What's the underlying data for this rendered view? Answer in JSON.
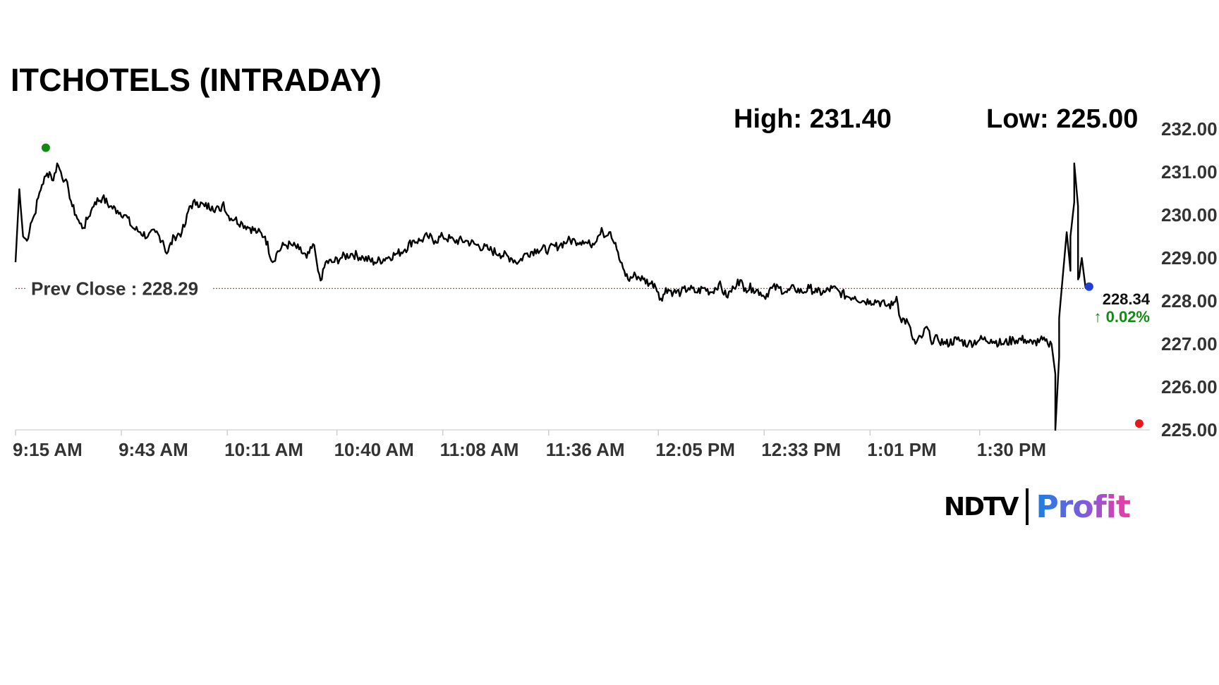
{
  "title": "ITCHOTELS (INTRADAY)",
  "stats": {
    "high_label": "High: 231.40",
    "low_label": "Low: 225.00"
  },
  "logo": {
    "brand": "NDTV",
    "product": "Profit"
  },
  "colors": {
    "line": "#000000",
    "prev_close_line": "#c0392b",
    "high_marker": "#138a13",
    "low_marker": "#e8171b",
    "last_marker": "#1f3fd6",
    "change_positive": "#138a13",
    "axis_text": "#333333"
  },
  "chart_data": {
    "type": "line",
    "title": "ITCHOTELS (INTRADAY)",
    "xlabel": "",
    "ylabel": "",
    "x_tick_labels": [
      "9:15 AM",
      "9:43 AM",
      "10:11 AM",
      "10:40 AM",
      "11:08 AM",
      "11:36 AM",
      "12:05 PM",
      "12:33 PM",
      "1:01 PM",
      "1:30 PM"
    ],
    "y_tick_labels": [
      "232.00",
      "231.00",
      "230.00",
      "229.00",
      "228.00",
      "227.00",
      "226.00",
      "225.00"
    ],
    "ylim": [
      225,
      232
    ],
    "x_range_minutes_from_915": [
      0,
      300
    ],
    "grid": false,
    "y_axis_position": "right",
    "prev_close": {
      "label": "Prev Close : 228.29",
      "value": 228.29
    },
    "high": {
      "value": 231.4,
      "time": "9:23 AM"
    },
    "low": {
      "value": 225.0,
      "time": "2:12 PM"
    },
    "last": {
      "value": 228.34,
      "label": "228.34",
      "change_label": "↑ 0.02%"
    },
    "series": [
      {
        "values": [
          [
            "9:15 AM",
            228.9
          ],
          [
            "9:16 AM",
            230.6
          ],
          [
            "9:17 AM",
            229.5
          ],
          [
            "9:18 AM",
            229.4
          ],
          [
            "9:19 AM",
            229.8
          ],
          [
            "9:20 AM",
            230.0
          ],
          [
            "9:21 AM",
            230.4
          ],
          [
            "9:22 AM",
            230.7
          ],
          [
            "9:23 AM",
            230.9
          ],
          [
            "9:24 AM",
            231.0
          ],
          [
            "9:25 AM",
            230.8
          ],
          [
            "9:26 AM",
            231.2
          ],
          [
            "9:27 AM",
            231.0
          ],
          [
            "9:28 AM",
            230.8
          ],
          [
            "9:29 AM",
            230.6
          ],
          [
            "9:30 AM",
            230.2
          ],
          [
            "9:31 AM",
            230.0
          ],
          [
            "9:32 AM",
            229.8
          ],
          [
            "9:33 AM",
            229.7
          ],
          [
            "9:34 AM",
            229.9
          ],
          [
            "9:35 AM",
            230.1
          ],
          [
            "9:36 AM",
            230.3
          ],
          [
            "9:38 AM",
            230.4
          ],
          [
            "9:40 AM",
            230.2
          ],
          [
            "9:42 AM",
            230.1
          ],
          [
            "9:44 AM",
            230.0
          ],
          [
            "9:46 AM",
            229.7
          ],
          [
            "9:48 AM",
            229.6
          ],
          [
            "9:50 AM",
            229.5
          ],
          [
            "9:52 AM",
            229.6
          ],
          [
            "9:54 AM",
            229.4
          ],
          [
            "9:55 AM",
            229.1
          ],
          [
            "9:57 AM",
            229.5
          ],
          [
            "9:59 AM",
            229.6
          ],
          [
            "10:00 AM",
            229.8
          ],
          [
            "10:01 AM",
            230.2
          ],
          [
            "10:03 AM",
            230.3
          ],
          [
            "10:05 AM",
            230.2
          ],
          [
            "10:07 AM",
            230.2
          ],
          [
            "10:09 AM",
            230.1
          ],
          [
            "10:10 AM",
            230.3
          ],
          [
            "10:11 AM",
            230.0
          ],
          [
            "10:13 AM",
            229.9
          ],
          [
            "10:15 AM",
            229.8
          ],
          [
            "10:17 AM",
            229.7
          ],
          [
            "10:19 AM",
            229.6
          ],
          [
            "10:21 AM",
            229.5
          ],
          [
            "10:23 AM",
            228.9
          ],
          [
            "10:24 AM",
            229.1
          ],
          [
            "10:26 AM",
            229.3
          ],
          [
            "10:28 AM",
            229.3
          ],
          [
            "10:30 AM",
            229.2
          ],
          [
            "10:32 AM",
            229.0
          ],
          [
            "10:34 AM",
            229.3
          ],
          [
            "10:35 AM",
            228.7
          ],
          [
            "10:36 AM",
            228.5
          ],
          [
            "10:37 AM",
            228.9
          ],
          [
            "10:39 AM",
            228.9
          ],
          [
            "10:41 AM",
            229.0
          ],
          [
            "10:44 AM",
            229.1
          ],
          [
            "10:47 AM",
            229.0
          ],
          [
            "10:50 AM",
            228.9
          ],
          [
            "10:53 AM",
            229.0
          ],
          [
            "10:56 AM",
            229.1
          ],
          [
            "10:58 AM",
            229.2
          ],
          [
            "11:00 AM",
            229.4
          ],
          [
            "11:02 AM",
            229.4
          ],
          [
            "11:04 AM",
            229.5
          ],
          [
            "11:06 AM",
            229.4
          ],
          [
            "11:08 AM",
            229.5
          ],
          [
            "11:11 AM",
            229.4
          ],
          [
            "11:14 AM",
            229.4
          ],
          [
            "11:17 AM",
            229.3
          ],
          [
            "11:20 AM",
            229.2
          ],
          [
            "11:23 AM",
            229.1
          ],
          [
            "11:26 AM",
            229.0
          ],
          [
            "11:28 AM",
            228.9
          ],
          [
            "11:30 AM",
            229.1
          ],
          [
            "11:33 AM",
            229.2
          ],
          [
            "11:36 AM",
            229.2
          ],
          [
            "11:39 AM",
            229.3
          ],
          [
            "11:41 AM",
            229.4
          ],
          [
            "11:43 AM",
            229.4
          ],
          [
            "11:45 AM",
            229.4
          ],
          [
            "11:47 AM",
            229.3
          ],
          [
            "11:49 AM",
            229.5
          ],
          [
            "11:50 AM",
            229.7
          ],
          [
            "11:51 AM",
            229.5
          ],
          [
            "11:52 AM",
            229.6
          ],
          [
            "11:53 AM",
            229.4
          ],
          [
            "11:54 AM",
            229.2
          ],
          [
            "11:55 AM",
            228.9
          ],
          [
            "11:56 AM",
            228.7
          ],
          [
            "11:57 AM",
            228.5
          ],
          [
            "11:59 AM",
            228.6
          ],
          [
            "12:01 PM",
            228.5
          ],
          [
            "12:03 PM",
            228.4
          ],
          [
            "12:04 PM",
            228.4
          ],
          [
            "12:05 PM",
            228.2
          ],
          [
            "12:06 PM",
            228.0
          ],
          [
            "12:07 PM",
            228.3
          ],
          [
            "12:09 PM",
            228.2
          ],
          [
            "12:11 PM",
            228.2
          ],
          [
            "12:13 PM",
            228.3
          ],
          [
            "12:15 PM",
            228.2
          ],
          [
            "12:17 PM",
            228.3
          ],
          [
            "12:19 PM",
            228.2
          ],
          [
            "12:21 PM",
            228.4
          ],
          [
            "12:23 PM",
            228.1
          ],
          [
            "12:25 PM",
            228.3
          ],
          [
            "12:26 PM",
            228.5
          ],
          [
            "12:28 PM",
            228.3
          ],
          [
            "12:30 PM",
            228.3
          ],
          [
            "12:32 PM",
            228.2
          ],
          [
            "12:33 PM",
            228.1
          ],
          [
            "12:35 PM",
            228.3
          ],
          [
            "12:37 PM",
            228.3
          ],
          [
            "12:39 PM",
            228.2
          ],
          [
            "12:41 PM",
            228.3
          ],
          [
            "12:43 PM",
            228.2
          ],
          [
            "12:45 PM",
            228.3
          ],
          [
            "12:47 PM",
            228.2
          ],
          [
            "12:49 PM",
            228.2
          ],
          [
            "12:51 PM",
            228.3
          ],
          [
            "12:53 PM",
            228.2
          ],
          [
            "12:55 PM",
            228.1
          ],
          [
            "12:57 PM",
            228.1
          ],
          [
            "12:59 PM",
            228.0
          ],
          [
            "1:01 PM",
            228.0
          ],
          [
            "1:03 PM",
            228.0
          ],
          [
            "1:05 PM",
            227.9
          ],
          [
            "1:07 PM",
            227.9
          ],
          [
            "1:08 PM",
            228.1
          ],
          [
            "1:09 PM",
            227.6
          ],
          [
            "1:11 PM",
            227.5
          ],
          [
            "1:12 PM",
            227.2
          ],
          [
            "1:13 PM",
            227.0
          ],
          [
            "1:15 PM",
            227.2
          ],
          [
            "1:16 PM",
            227.4
          ],
          [
            "1:17 PM",
            227.1
          ],
          [
            "1:19 PM",
            227.1
          ],
          [
            "1:21 PM",
            227.0
          ],
          [
            "1:24 PM",
            227.1
          ],
          [
            "1:27 PM",
            227.0
          ],
          [
            "1:30 PM",
            227.1
          ],
          [
            "1:33 PM",
            227.1
          ],
          [
            "1:36 PM",
            227.0
          ],
          [
            "1:39 PM",
            227.1
          ],
          [
            "1:42 PM",
            227.1
          ],
          [
            "1:44 PM",
            227.0
          ],
          [
            "1:46 PM",
            227.1
          ],
          [
            "1:48 PM",
            227.0
          ],
          [
            "1:49 PM",
            227.0
          ],
          [
            "1:50 PM",
            226.3
          ],
          [
            "1:50 PM",
            225.0
          ],
          [
            "1:51 PM",
            226.7
          ],
          [
            "1:51 PM",
            227.6
          ],
          [
            "1:52 PM",
            228.6
          ],
          [
            "1:53 PM",
            229.6
          ],
          [
            "1:54 PM",
            228.7
          ],
          [
            "1:54 PM",
            229.5
          ],
          [
            "1:55 PM",
            230.3
          ],
          [
            "1:55 PM",
            231.2
          ],
          [
            "1:56 PM",
            230.2
          ],
          [
            "1:56 PM",
            228.5
          ],
          [
            "1:57 PM",
            229.0
          ],
          [
            "1:58 PM",
            228.3
          ]
        ]
      }
    ]
  }
}
